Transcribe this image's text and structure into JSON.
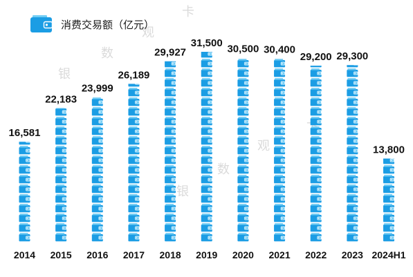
{
  "colors": {
    "bar": "#1b9de4",
    "bar_light": "#72cdf5",
    "clasp": "#ffffff",
    "text": "#111111",
    "watermark": "#dadada"
  },
  "title_icon": "wallet-icon",
  "bar_icon": "wallet-icon",
  "watermark": {
    "chars": [
      "银",
      "数",
      "观",
      "卡"
    ]
  },
  "chart_data": {
    "type": "bar",
    "title": "消费交易额（亿元）",
    "categories": [
      "2014",
      "2015",
      "2016",
      "2017",
      "2018",
      "2019",
      "2020",
      "2021",
      "2022",
      "2023",
      "2024H1"
    ],
    "values": [
      16581,
      22183,
      23999,
      26189,
      29927,
      31500,
      30500,
      30400,
      29200,
      29300,
      13800
    ],
    "data_labels": [
      "16,581",
      "22,183",
      "23,999",
      "26,189",
      "29,927",
      "31,500",
      "30,500",
      "30,400",
      "29,200",
      "29,300",
      "13,800"
    ],
    "ylim": [
      0,
      31500
    ],
    "grid": false
  }
}
